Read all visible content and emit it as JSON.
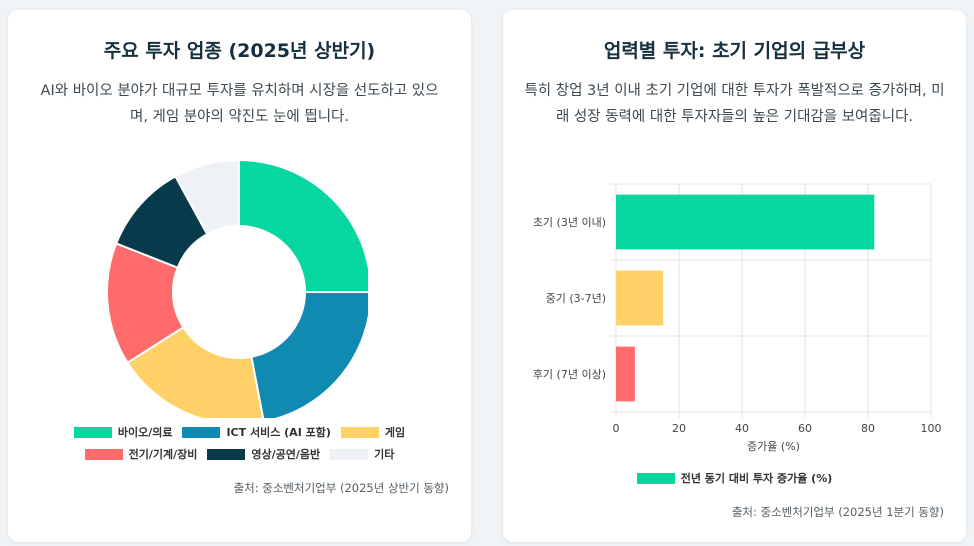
{
  "left_card": {
    "title": "주요 투자 업종 (2025년 상반기)",
    "description": "AI와 바이오 분야가 대규모 투자를 유치하며 시장을 선도하고 있으며, 게임 분야의 약진도 눈에 띕니다.",
    "source": "출처: 중소벤처기업부 (2025년 상반기 동향)"
  },
  "right_card": {
    "title": "업력별 투자: 초기 기업의 급부상",
    "description": "특히 창업 3년 이내 초기 기업에 대한 투자가 폭발적으로 증가하며, 미래 성장 동력에 대한 투자자들의 높은 기대감을 보여줍니다.",
    "source": "출처: 중소벤처기업부 (2025년 1분기 동향)"
  },
  "chart_data": [
    {
      "type": "pie",
      "variant": "doughnut",
      "categories": [
        "바이오/의료",
        "ICT 서비스 (AI 포함)",
        "게임",
        "전기/기계/장비",
        "영상/공연/음반",
        "기타"
      ],
      "values": [
        25,
        22,
        19,
        15,
        11,
        8
      ],
      "colors": [
        "#06d6a0",
        "#118ab2",
        "#ffd166",
        "#ff6b6b",
        "#073b4c",
        "#eef2f7"
      ],
      "legend_position": "bottom"
    },
    {
      "type": "bar",
      "orientation": "horizontal",
      "categories": [
        "초기 (3년 이내)",
        "중기 (3-7년)",
        "후기 (7년 이상)"
      ],
      "series": [
        {
          "name": "전년 동기 대비 투자 증가율 (%)",
          "values": [
            82,
            15,
            6
          ]
        }
      ],
      "colors": [
        "#06d6a0",
        "#ffd166",
        "#ff6b6b"
      ],
      "xlabel": "증가율 (%)",
      "xlim": [
        0,
        100
      ],
      "xticks": [
        0,
        20,
        40,
        60,
        80,
        100
      ],
      "grid": true,
      "legend_position": "bottom"
    }
  ]
}
